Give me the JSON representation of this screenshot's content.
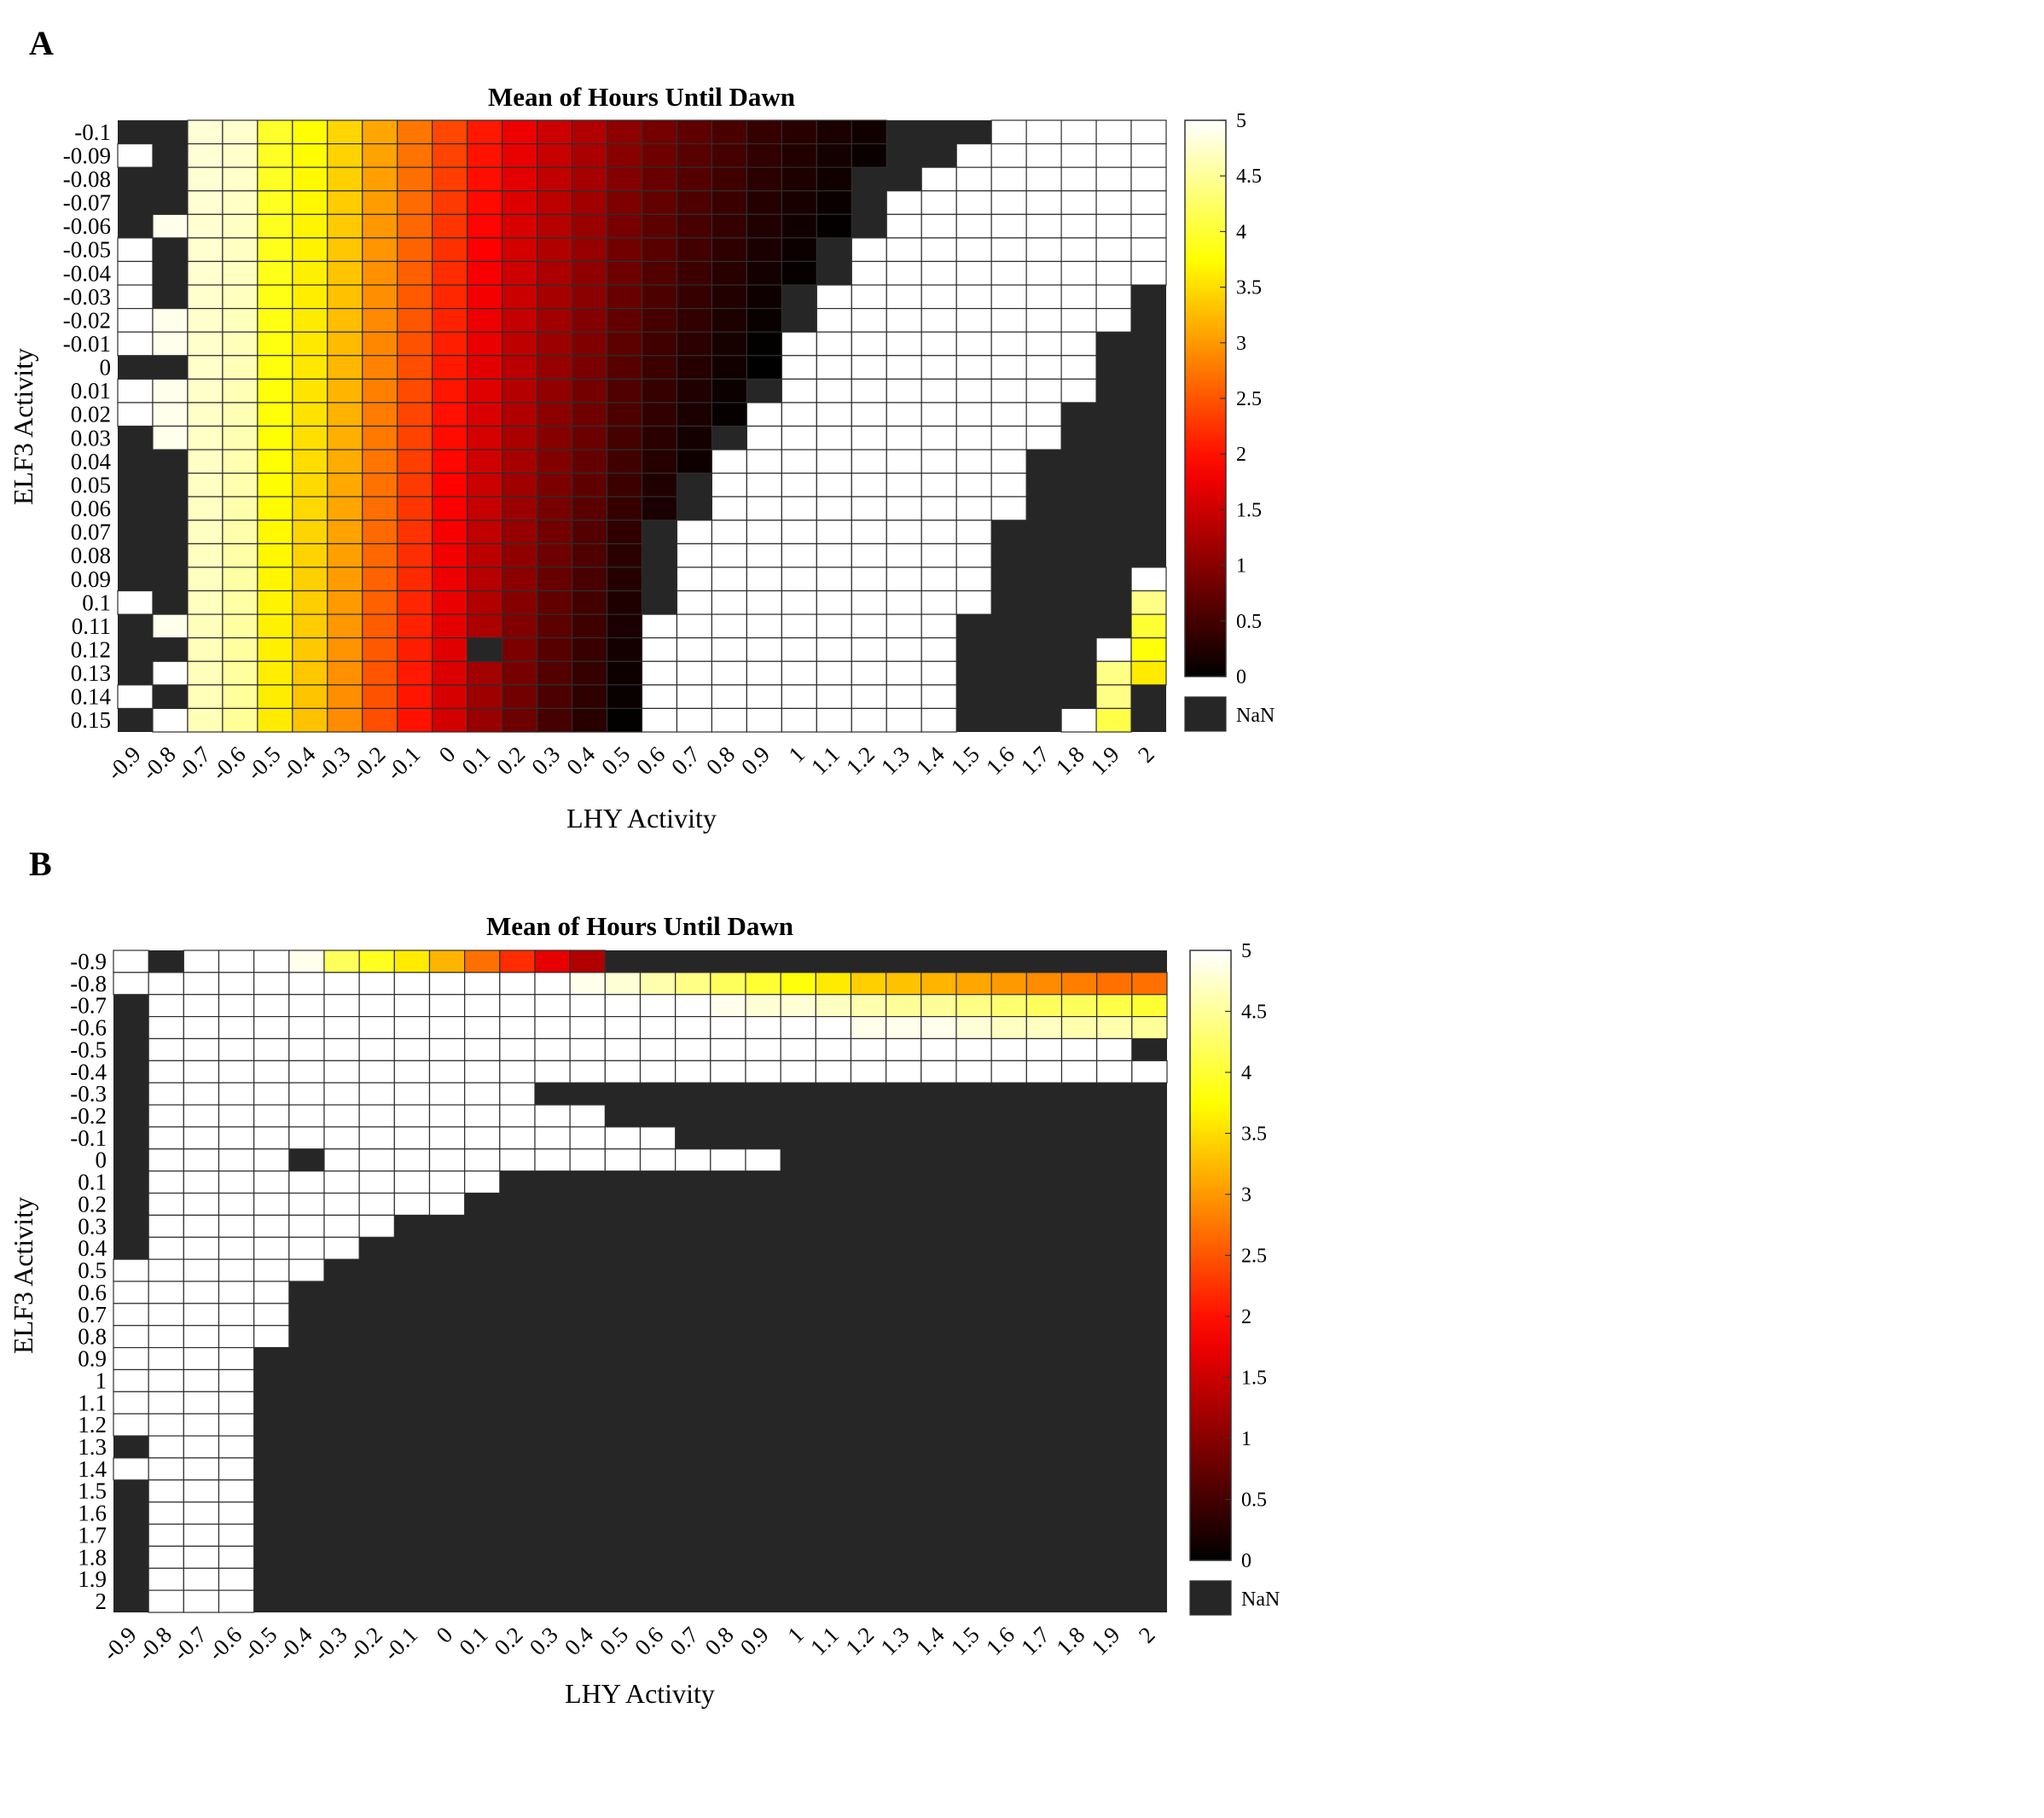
{
  "panels": [
    {
      "letter": "A",
      "chart_data": {
        "type": "heatmap",
        "title": "Mean of Hours Until Dawn",
        "xlabel": "LHY Activity",
        "ylabel": "ELF3 Activity",
        "x": [
          "-0.9",
          "-0.8",
          "-0.7",
          "-0.6",
          "-0.5",
          "-0.4",
          "-0.3",
          "-0.2",
          "-0.1",
          "0",
          "0.1",
          "0.2",
          "0.3",
          "0.4",
          "0.5",
          "0.6",
          "0.7",
          "0.8",
          "0.9",
          "1",
          "1.1",
          "1.2",
          "1.3",
          "1.4",
          "1.5",
          "1.6",
          "1.7",
          "1.8",
          "1.9",
          "2"
        ],
        "y": [
          "-0.1",
          "-0.09",
          "-0.08",
          "-0.07",
          "-0.06",
          "-0.05",
          "-0.04",
          "-0.03",
          "-0.02",
          "-0.01",
          "0",
          "0.01",
          "0.02",
          "0.03",
          "0.04",
          "0.05",
          "0.06",
          "0.07",
          "0.08",
          "0.09",
          "0.1",
          "0.11",
          "0.12",
          "0.13",
          "0.14",
          "0.15"
        ],
        "colorbar": {
          "min": 0,
          "max": 5,
          "colormap": "hot",
          "ticks": [
            "0",
            "0.5",
            "1",
            "1.5",
            "2",
            "2.5",
            "3",
            "3.5",
            "4",
            "4.5",
            "5"
          ],
          "nan_label": "NaN",
          "nan_color": "#262626"
        },
        "value_model": "bands",
        "white_band_width": 9,
        "leading_cells": [
          [
            null,
            null
          ],
          [
            5,
            null
          ],
          [
            null,
            null
          ],
          [
            null,
            null
          ],
          [
            null,
            4.9
          ],
          [
            5,
            null
          ],
          [
            5,
            null
          ],
          [
            5,
            null
          ],
          [
            5,
            4.9
          ],
          [
            5,
            4.9
          ],
          [
            null,
            null
          ],
          [
            5,
            4.9
          ],
          [
            5,
            4.9
          ],
          [
            null,
            4.9
          ],
          [
            null,
            null
          ],
          [
            null,
            null
          ],
          [
            null,
            null
          ],
          [
            null,
            null
          ],
          [
            null,
            null
          ],
          [
            null,
            null
          ],
          [
            5,
            null
          ],
          [
            null,
            4.9
          ],
          [
            null,
            null
          ],
          [
            null,
            5
          ],
          [
            5,
            null
          ],
          [
            null,
            5
          ]
        ],
        "graded_start": [
          4.8,
          4.75,
          3.95,
          3.75,
          3.45,
          3.1,
          2.75,
          2.4,
          2.05,
          1.75,
          1.5,
          1.3,
          1.05,
          0.85,
          0.7,
          0.55,
          0.4,
          0.3,
          0.2,
          0.12,
          0.06,
          0.03
        ],
        "graded_slope": [
          0.006,
          0.01,
          0.014,
          0.018,
          0.022,
          0.026,
          0.03,
          0.034,
          0.037,
          0.038,
          0.039,
          0.04,
          0.041,
          0.041,
          0.042,
          0.042,
          0.042,
          0.042,
          0.042,
          0.042,
          0.04,
          0.038
        ],
        "graded_end": [
          21,
          21,
          20,
          20,
          20,
          19,
          19,
          18,
          18,
          18,
          18,
          17,
          17,
          16,
          16,
          15,
          15,
          14,
          14,
          14,
          14,
          14,
          14,
          14,
          14,
          14
        ],
        "white_start": [
          25,
          24,
          23,
          22,
          22,
          21,
          21,
          20,
          20,
          19,
          19,
          19,
          18,
          18,
          17,
          17,
          17,
          16,
          16,
          16,
          16,
          15,
          15,
          15,
          15,
          15
        ],
        "trailing_cells": [
          [],
          [],
          [],
          [],
          [],
          [],
          [],
          [],
          [],
          [],
          [],
          [],
          [],
          [],
          [],
          [],
          [],
          [],
          [],
          [
            [
              29,
              5
            ]
          ],
          [
            [
              29,
              4.4
            ]
          ],
          [
            [
              29,
              4.0
            ]
          ],
          [
            [
              28,
              5
            ],
            [
              29,
              3.8
            ]
          ],
          [
            [
              28,
              4.4
            ],
            [
              29,
              3.6
            ]
          ],
          [
            [
              28,
              4.4
            ]
          ],
          [
            [
              27,
              5
            ],
            [
              28,
              4.1
            ]
          ]
        ],
        "nan_cells": [
          [
            22,
            10
          ]
        ]
      }
    },
    {
      "letter": "B",
      "chart_data": {
        "type": "heatmap",
        "title": "Mean of Hours Until Dawn",
        "xlabel": "LHY Activity",
        "ylabel": "ELF3 Activity",
        "x": [
          "-0.9",
          "-0.8",
          "-0.7",
          "-0.6",
          "-0.5",
          "-0.4",
          "-0.3",
          "-0.2",
          "-0.1",
          "0",
          "0.1",
          "0.2",
          "0.3",
          "0.4",
          "0.5",
          "0.6",
          "0.7",
          "0.8",
          "0.9",
          "1",
          "1.1",
          "1.2",
          "1.3",
          "1.4",
          "1.5",
          "1.6",
          "1.7",
          "1.8",
          "1.9",
          "2"
        ],
        "y": [
          "-0.9",
          "-0.8",
          "-0.7",
          "-0.6",
          "-0.5",
          "-0.4",
          "-0.3",
          "-0.2",
          "-0.1",
          "0",
          "0.1",
          "0.2",
          "0.3",
          "0.4",
          "0.5",
          "0.6",
          "0.7",
          "0.8",
          "0.9",
          "1",
          "1.1",
          "1.2",
          "1.3",
          "1.4",
          "1.5",
          "1.6",
          "1.7",
          "1.8",
          "1.9",
          "2"
        ],
        "colorbar": {
          "min": 0,
          "max": 5,
          "colormap": "hot",
          "ticks": [
            "0",
            "0.5",
            "1",
            "1.5",
            "2",
            "2.5",
            "3",
            "3.5",
            "4",
            "4.5",
            "5"
          ],
          "nan_label": "NaN",
          "nan_color": "#262626"
        },
        "value_model": "extent",
        "col0_filled": [
          true,
          true,
          false,
          false,
          false,
          false,
          false,
          false,
          false,
          false,
          false,
          false,
          false,
          false,
          true,
          true,
          true,
          true,
          true,
          true,
          true,
          true,
          false,
          true,
          false,
          false,
          false,
          false,
          false,
          false
        ],
        "row_white_end": [
          null,
          29,
          29,
          29,
          28,
          29,
          11,
          13,
          15,
          18,
          10,
          9,
          7,
          6,
          5,
          4,
          4,
          4,
          3,
          3,
          3,
          3,
          3,
          3,
          3,
          3,
          3,
          3,
          3,
          3
        ],
        "row0_values": [
          5,
          null,
          5,
          5,
          5,
          4.9,
          4.2,
          3.9,
          3.6,
          3.2,
          2.7,
          2.2,
          1.7,
          1.3
        ],
        "row1_values": [
          5,
          5,
          5,
          5,
          5,
          5,
          5,
          5,
          5,
          5,
          5,
          5,
          5,
          4.9,
          4.8,
          4.6,
          4.4,
          4.2,
          4.0,
          3.8,
          3.6,
          3.4,
          3.3,
          3.2,
          3.1,
          3.0,
          2.9,
          2.8,
          2.7,
          2.7
        ],
        "row2_values": [
          5,
          5,
          5,
          5,
          5,
          5,
          5,
          5,
          5,
          5,
          5,
          5,
          5,
          5,
          5,
          5,
          5,
          4.9,
          4.8,
          4.8,
          4.7,
          4.6,
          4.5,
          4.5,
          4.4,
          4.3,
          4.2,
          4.2,
          4.1,
          4.0
        ],
        "row3_values": [
          5,
          5,
          5,
          5,
          5,
          5,
          5,
          5,
          5,
          5,
          5,
          5,
          5,
          5,
          5,
          5,
          5,
          5,
          5,
          5,
          5,
          4.9,
          4.9,
          4.9,
          4.8,
          4.7,
          4.7,
          4.6,
          4.6,
          4.5
        ],
        "nan_cells": [
          [
            9,
            5
          ]
        ]
      }
    }
  ]
}
